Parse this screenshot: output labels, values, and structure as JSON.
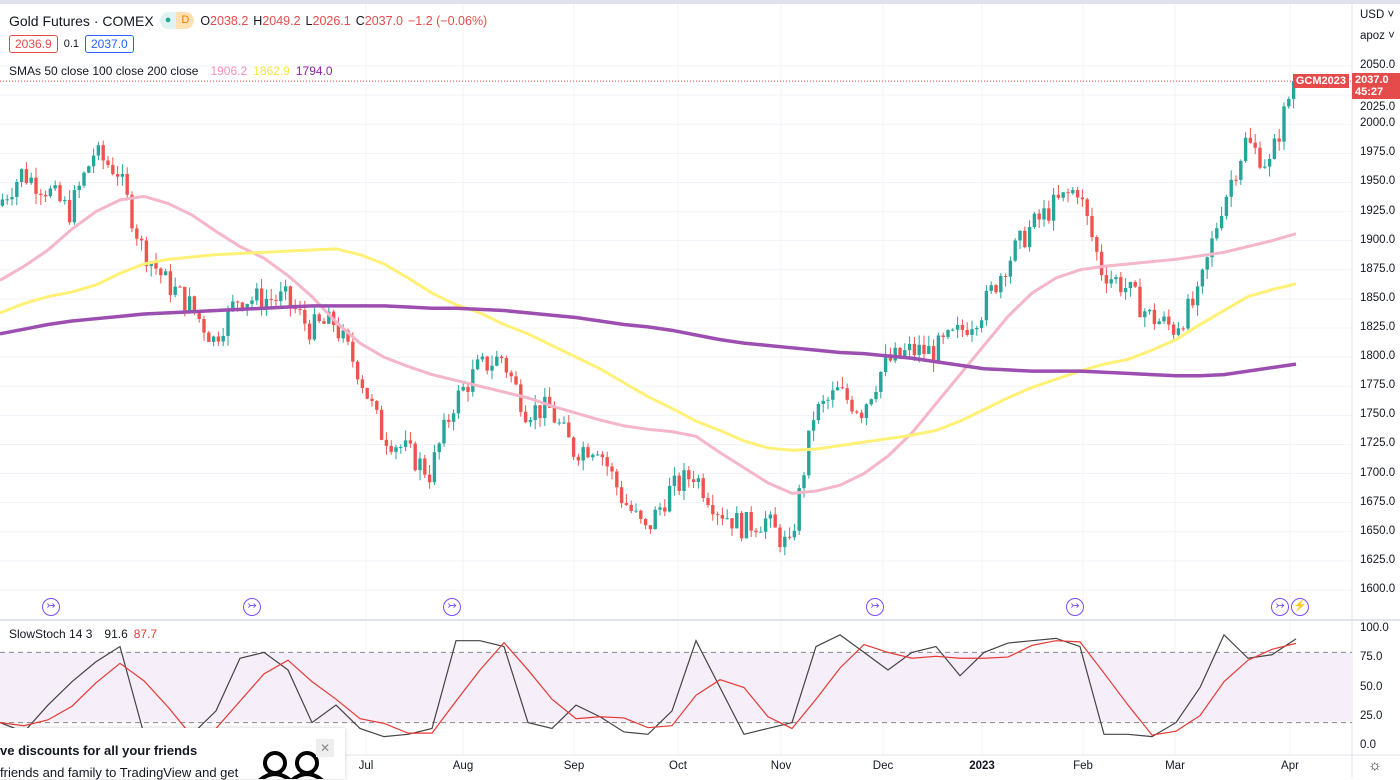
{
  "header": {
    "symbol": "Gold Futures · COMEX",
    "status_dot": "●",
    "interval": "D",
    "o_label": "O",
    "o": "2038.2",
    "h_label": "H",
    "h": "2049.2",
    "l_label": "L",
    "l": "2026.1",
    "c_label": "C",
    "c": "2037.0",
    "change": "−1.2 (−0.06%)",
    "bid": "2036.9",
    "spread": "0.1",
    "ask": "2037.0"
  },
  "sma": {
    "label": "SMAs 50 close 100 close 200 close",
    "v50": "1906.2",
    "v100": "1862.9",
    "v200": "1794.0"
  },
  "stoch": {
    "label": "SlowStoch 14 3",
    "k": "91.6",
    "d": "87.7"
  },
  "right_axis": {
    "currency": "USD ˅",
    "scale": "apoz ˅",
    "price_ticks": [
      "2050.0",
      "2025.0",
      "2000.0",
      "1975.0",
      "1950.0",
      "1925.0",
      "1900.0",
      "1875.0",
      "1850.0",
      "1825.0",
      "1800.0",
      "1775.0",
      "1750.0",
      "1725.0",
      "1700.0",
      "1675.0",
      "1650.0",
      "1625.0",
      "1600.0"
    ],
    "stoch_ticks": [
      "100.0",
      "75.0",
      "50.0",
      "25.0",
      "0.0"
    ],
    "contract": "GCM2023",
    "last_price": "2037.0",
    "countdown": "45:27"
  },
  "time_axis": [
    "Jul",
    "Aug",
    "Sep",
    "Oct",
    "Nov",
    "Dec",
    "2023",
    "Feb",
    "Mar",
    "Apr"
  ],
  "popup": {
    "title": "ve discounts for all your friends",
    "text": "friends and family to TradingView and get",
    "close": "✕"
  },
  "colors": {
    "up": "#26a69a",
    "down": "#ef5350",
    "sma50": "#f4b6c8",
    "sma100": "#fff176",
    "sma200": "#9c4fb0"
  },
  "chart_data": {
    "type": "candlestick",
    "sampling": "weekly closes",
    "price_range": [
      1600,
      2050
    ],
    "closes": [
      1930,
      1958,
      1945,
      1925,
      1975,
      1960,
      1895,
      1865,
      1845,
      1815,
      1850,
      1850,
      1850,
      1825,
      1830,
      1790,
      1735,
      1720,
      1700,
      1760,
      1790,
      1800,
      1755,
      1755,
      1720,
      1725,
      1680,
      1650,
      1685,
      1700,
      1670,
      1655,
      1660,
      1635,
      1750,
      1770,
      1755,
      1795,
      1805,
      1805,
      1820,
      1840,
      1880,
      1910,
      1930,
      1945,
      1875,
      1860,
      1835,
      1825,
      1850,
      1930,
      1985,
      1965,
      2037
    ],
    "sma50": [
      1866,
      1878,
      1892,
      1910,
      1925,
      1935,
      1938,
      1932,
      1922,
      1908,
      1895,
      1885,
      1870,
      1852,
      1830,
      1812,
      1800,
      1792,
      1785,
      1780,
      1775,
      1770,
      1765,
      1758,
      1752,
      1746,
      1741,
      1738,
      1736,
      1732,
      1718,
      1705,
      1692,
      1683,
      1685,
      1690,
      1700,
      1715,
      1735,
      1760,
      1785,
      1810,
      1835,
      1855,
      1868,
      1875,
      1878,
      1880,
      1882,
      1884,
      1887,
      1890,
      1895,
      1900,
      1906
    ],
    "sma100": [
      1838,
      1846,
      1852,
      1856,
      1862,
      1872,
      1880,
      1884,
      1886,
      1888,
      1889,
      1890,
      1891,
      1892,
      1893,
      1888,
      1880,
      1868,
      1855,
      1845,
      1838,
      1828,
      1820,
      1810,
      1800,
      1790,
      1778,
      1766,
      1756,
      1745,
      1737,
      1728,
      1722,
      1720,
      1721,
      1724,
      1727,
      1730,
      1733,
      1737,
      1745,
      1755,
      1765,
      1774,
      1781,
      1788,
      1794,
      1798,
      1806,
      1815,
      1828,
      1840,
      1852,
      1858,
      1862.9
    ],
    "sma200": [
      1820,
      1824,
      1828,
      1831,
      1833,
      1835,
      1837,
      1838,
      1839,
      1840,
      1841,
      1842,
      1843,
      1844,
      1844,
      1844,
      1844,
      1843,
      1842,
      1842,
      1841,
      1840,
      1838,
      1836,
      1834,
      1831,
      1828,
      1826,
      1823,
      1819,
      1815,
      1812,
      1810,
      1808,
      1806,
      1804,
      1803,
      1801,
      1799,
      1796,
      1793,
      1790,
      1789,
      1788,
      1788,
      1788,
      1787,
      1786,
      1785,
      1784,
      1784,
      1785,
      1788,
      1791,
      1794
    ],
    "stoch_k": [
      20,
      12,
      35,
      55,
      72,
      85,
      10,
      5,
      10,
      30,
      75,
      80,
      65,
      20,
      35,
      15,
      8,
      10,
      15,
      90,
      90,
      85,
      20,
      15,
      35,
      25,
      12,
      10,
      30,
      90,
      50,
      10,
      15,
      20,
      85,
      95,
      80,
      65,
      80,
      85,
      60,
      80,
      88,
      90,
      92,
      85,
      10,
      10,
      8,
      20,
      50,
      95,
      75,
      78,
      91.6
    ],
    "stoch_levels": [
      80,
      20
    ]
  }
}
